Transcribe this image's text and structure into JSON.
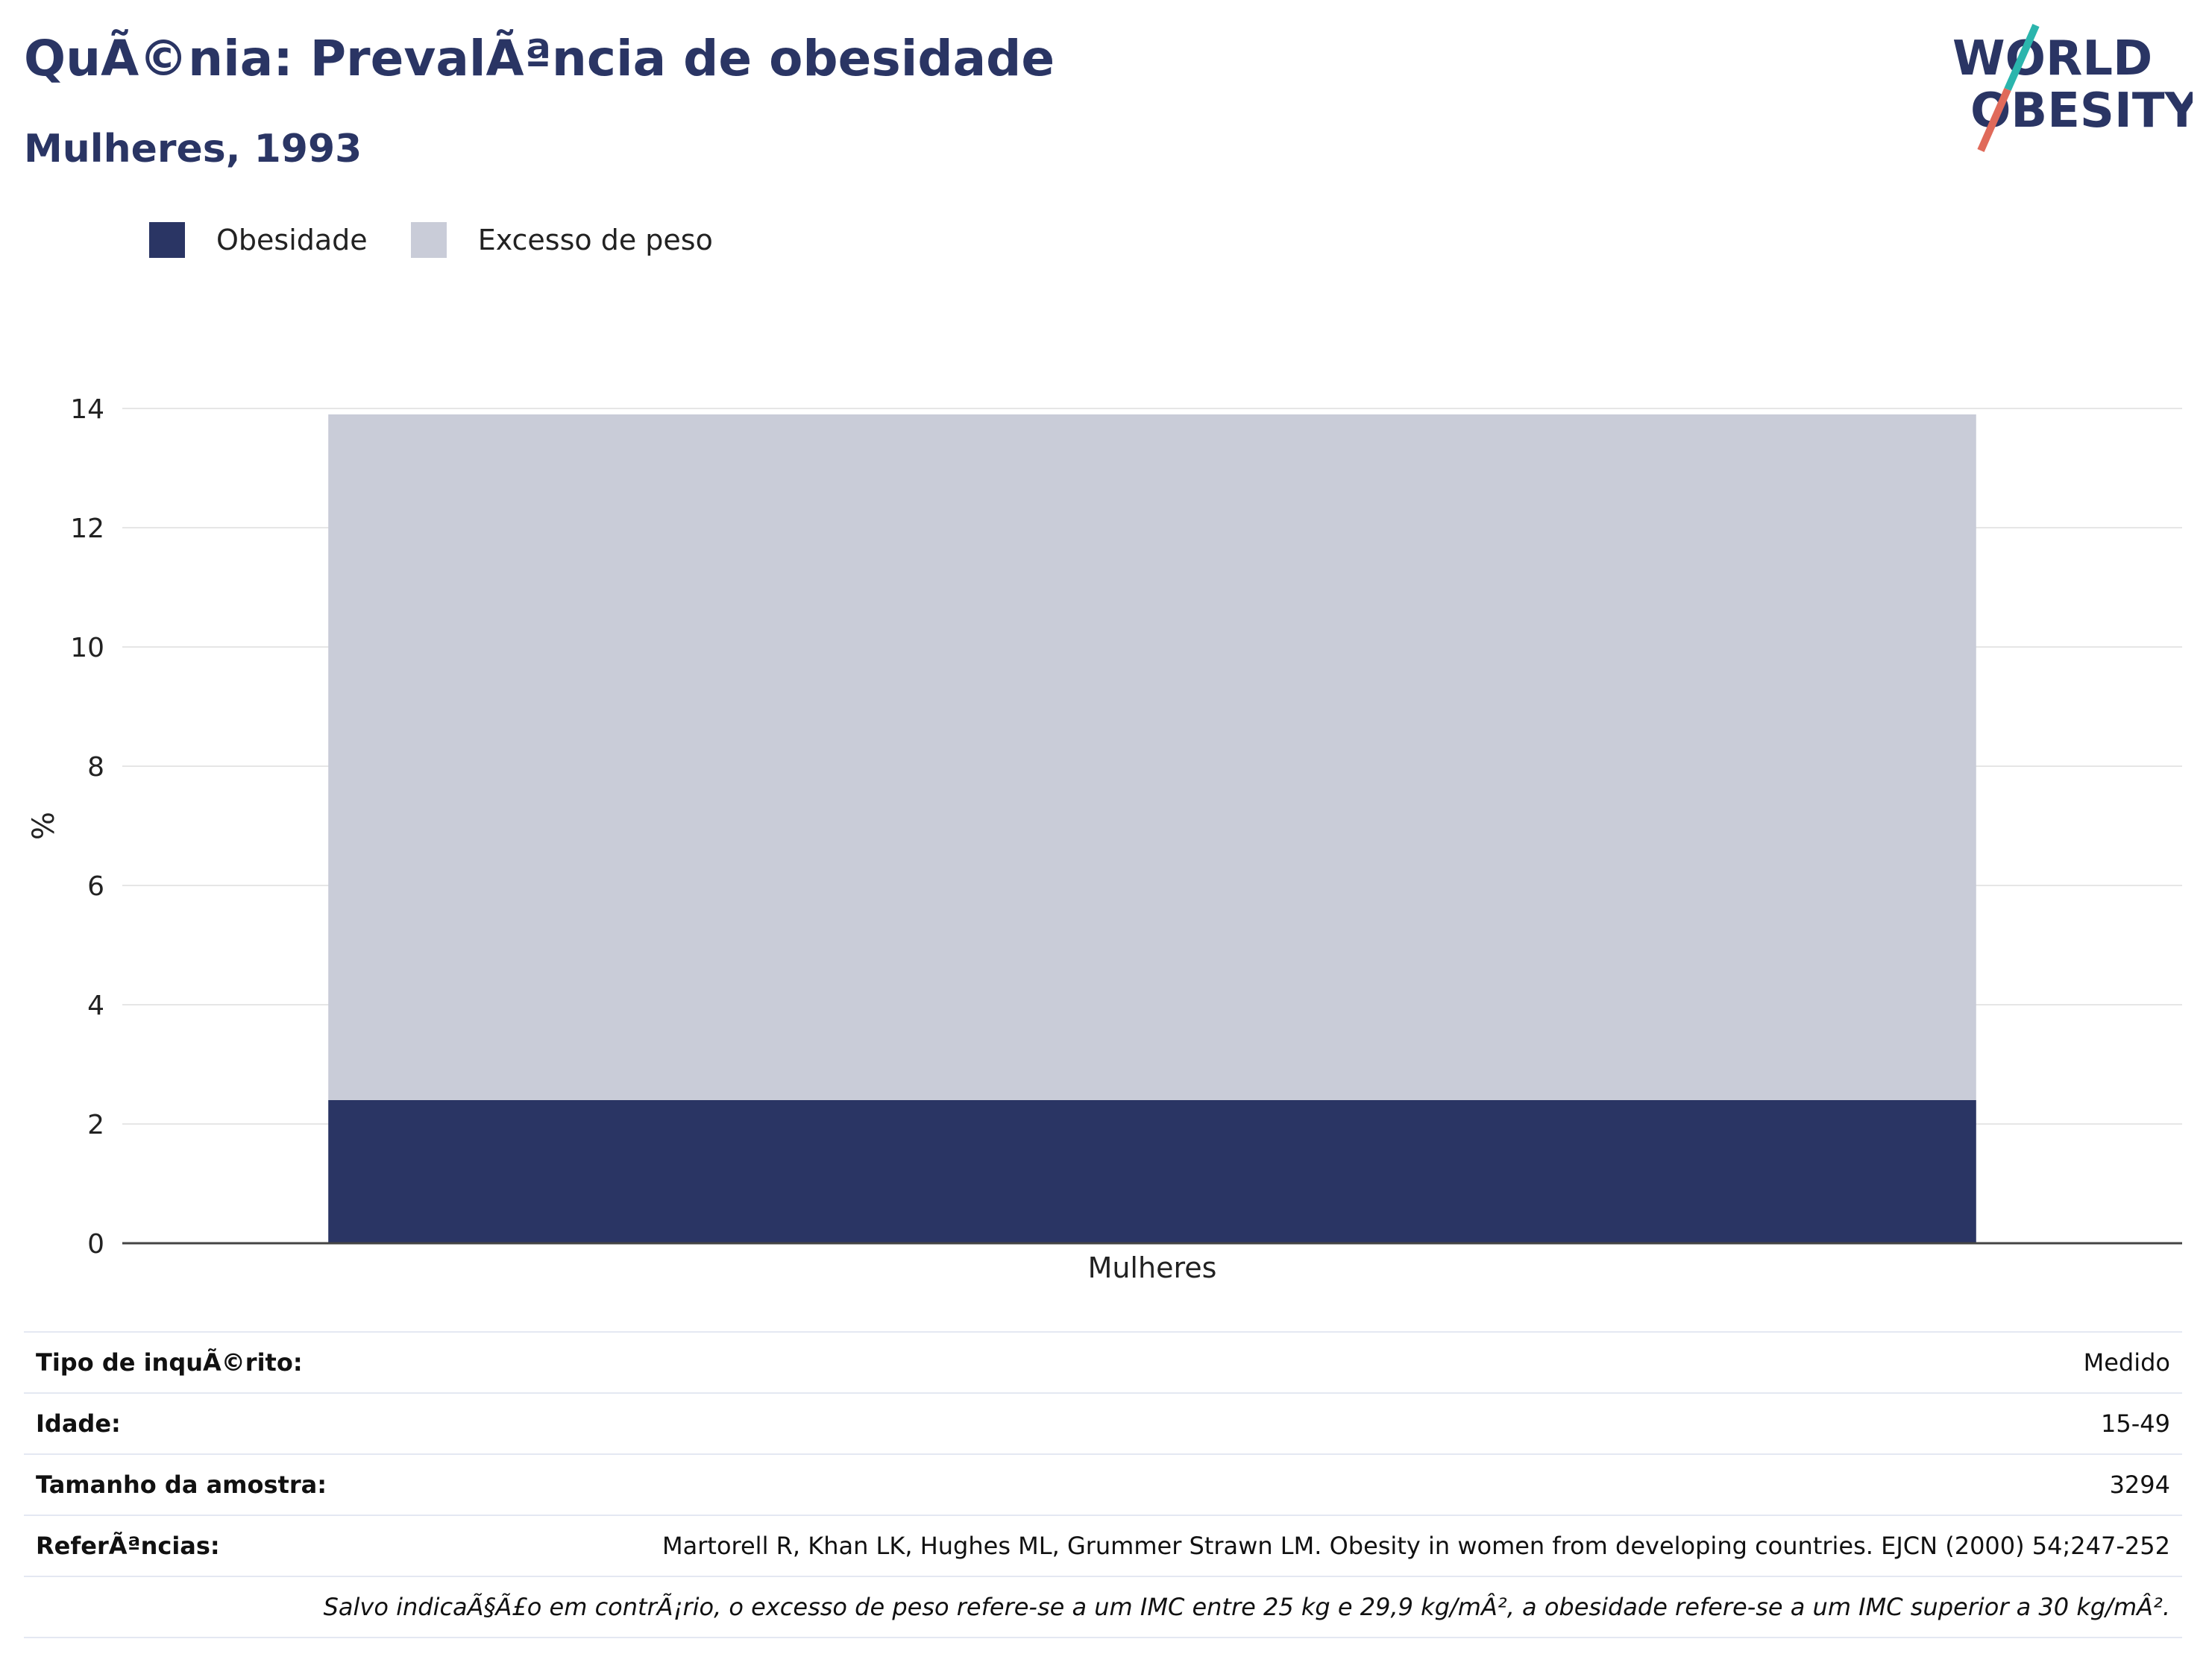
{
  "header": {
    "title": "QuÃ©nia: PrevalÃªncia de obesidade",
    "subtitle": "Mulheres, 1993"
  },
  "logo": {
    "line1": "WORLD",
    "line2": "OBESITY",
    "colors": {
      "text": "#2a3564",
      "slash_top": "#2bb5ad",
      "slash_bottom": "#e06a5a"
    }
  },
  "legend": [
    {
      "label": "Obesidade",
      "color": "#2a3564"
    },
    {
      "label": "Excesso de peso",
      "color": "#c9ccd8"
    }
  ],
  "chart_data": {
    "type": "bar",
    "stacked": true,
    "categories": [
      "Mulheres"
    ],
    "series": [
      {
        "name": "Obesidade",
        "values": [
          2.4
        ],
        "color": "#2a3564"
      },
      {
        "name": "Excesso de peso",
        "values": [
          11.5
        ],
        "color": "#c9ccd8"
      }
    ],
    "ylabel": "%",
    "xlabel": "",
    "ylim": [
      0,
      14
    ],
    "yticks": [
      0,
      2,
      4,
      6,
      8,
      10,
      12,
      14
    ],
    "grid": true,
    "legend_position": "top-left"
  },
  "info": {
    "rows": [
      {
        "key": "Tipo de inquÃ©rito:",
        "value": "Medido"
      },
      {
        "key": "Idade:",
        "value": "15-49"
      },
      {
        "key": "Tamanho da amostra:",
        "value": "3294"
      },
      {
        "key": "ReferÃªncias:",
        "value": "Martorell R, Khan LK, Hughes ML, Grummer Strawn LM. Obesity in women from developing countries. EJCN (2000) 54;247-252"
      }
    ],
    "note": "Salvo indicaÃ§Ã£o em contrÃ¡rio, o excesso de peso refere-se a um IMC entre 25 kg e 29,9 kg/mÂ², a obesidade refere-se a um IMC superior a 30 kg/mÂ²."
  }
}
